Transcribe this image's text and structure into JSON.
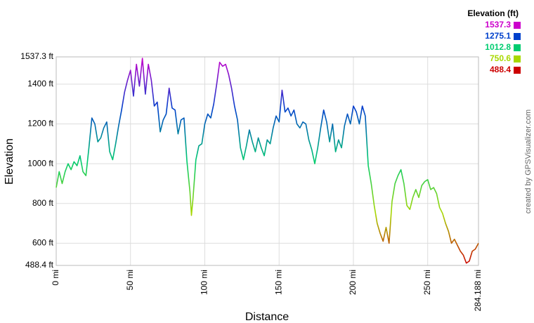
{
  "chart_data": {
    "type": "line",
    "x_label": "Distance",
    "y_label": "Elevation",
    "credit": "created by GPSVisualizer.com",
    "grid": true,
    "xlim": [
      0,
      284.188
    ],
    "ylim": [
      488.4,
      1537.3
    ],
    "xticks": [
      {
        "value": 0,
        "label": "0 mi"
      },
      {
        "value": 50,
        "label": "50 mi"
      },
      {
        "value": 100,
        "label": "100 mi"
      },
      {
        "value": 150,
        "label": "150 mi"
      },
      {
        "value": 200,
        "label": "200 mi"
      },
      {
        "value": 250,
        "label": "250 mi"
      },
      {
        "value": 284.188,
        "label": "284.188 mi"
      }
    ],
    "yticks": [
      {
        "value": 488.4,
        "label": "488.4 ft"
      },
      {
        "value": 600,
        "label": "600 ft"
      },
      {
        "value": 800,
        "label": "800 ft"
      },
      {
        "value": 1000,
        "label": "1000 ft"
      },
      {
        "value": 1200,
        "label": "1200 ft"
      },
      {
        "value": 1400,
        "label": "1400 ft"
      },
      {
        "value": 1537.3,
        "label": "1537.3 ft"
      }
    ],
    "color_scale": {
      "title": "Elevation (ft)",
      "values": [
        1537.3,
        1275.1,
        1012.8,
        750.6,
        488.4
      ],
      "colors": [
        "#cc00cc",
        "#0040cc",
        "#00cc70",
        "#a8d800",
        "#cc0000"
      ]
    },
    "x": [
      0,
      2,
      4,
      6,
      8,
      10,
      12,
      14,
      16,
      18,
      20,
      22,
      24,
      26,
      28,
      30,
      32,
      34,
      36,
      38,
      40,
      42,
      44,
      46,
      48,
      50,
      52,
      54,
      56,
      58,
      60,
      62,
      64,
      66,
      68,
      70,
      72,
      74,
      76,
      78,
      80,
      82,
      84,
      86,
      88,
      90,
      91,
      92,
      94,
      96,
      98,
      100,
      102,
      104,
      106,
      108,
      110,
      112,
      114,
      116,
      118,
      120,
      122,
      124,
      126,
      128,
      130,
      132,
      134,
      136,
      138,
      140,
      142,
      144,
      146,
      148,
      150,
      152,
      154,
      156,
      158,
      160,
      162,
      164,
      166,
      168,
      170,
      172,
      174,
      176,
      178,
      180,
      182,
      184,
      186,
      188,
      190,
      192,
      194,
      196,
      198,
      200,
      202,
      204,
      206,
      208,
      210,
      212,
      214,
      216,
      218,
      220,
      222,
      224,
      226,
      228,
      230,
      232,
      234,
      236,
      238,
      240,
      242,
      244,
      246,
      248,
      250,
      252,
      254,
      256,
      258,
      260,
      262,
      264,
      266,
      268,
      270,
      272,
      274,
      276,
      278,
      280,
      282,
      284.188
    ],
    "values": [
      880,
      960,
      900,
      960,
      1000,
      970,
      1010,
      990,
      1040,
      960,
      940,
      1080,
      1230,
      1200,
      1110,
      1130,
      1180,
      1210,
      1060,
      1020,
      1100,
      1190,
      1270,
      1360,
      1420,
      1470,
      1340,
      1500,
      1390,
      1530,
      1350,
      1500,
      1420,
      1290,
      1310,
      1160,
      1220,
      1250,
      1380,
      1280,
      1270,
      1150,
      1220,
      1230,
      1010,
      860,
      740,
      820,
      1020,
      1090,
      1100,
      1200,
      1250,
      1230,
      1300,
      1400,
      1510,
      1490,
      1500,
      1450,
      1380,
      1290,
      1220,
      1080,
      1020,
      1090,
      1170,
      1110,
      1060,
      1130,
      1080,
      1040,
      1120,
      1100,
      1180,
      1240,
      1210,
      1370,
      1260,
      1280,
      1240,
      1270,
      1200,
      1180,
      1210,
      1200,
      1120,
      1070,
      1000,
      1080,
      1180,
      1270,
      1210,
      1110,
      1200,
      1060,
      1120,
      1080,
      1190,
      1250,
      1200,
      1290,
      1260,
      1200,
      1290,
      1240,
      990,
      900,
      790,
      700,
      650,
      610,
      680,
      600,
      810,
      900,
      940,
      970,
      900,
      790,
      770,
      830,
      870,
      830,
      890,
      910,
      920,
      870,
      880,
      850,
      780,
      750,
      700,
      660,
      600,
      620,
      590,
      560,
      540,
      500,
      510,
      560,
      570,
      600
    ]
  }
}
